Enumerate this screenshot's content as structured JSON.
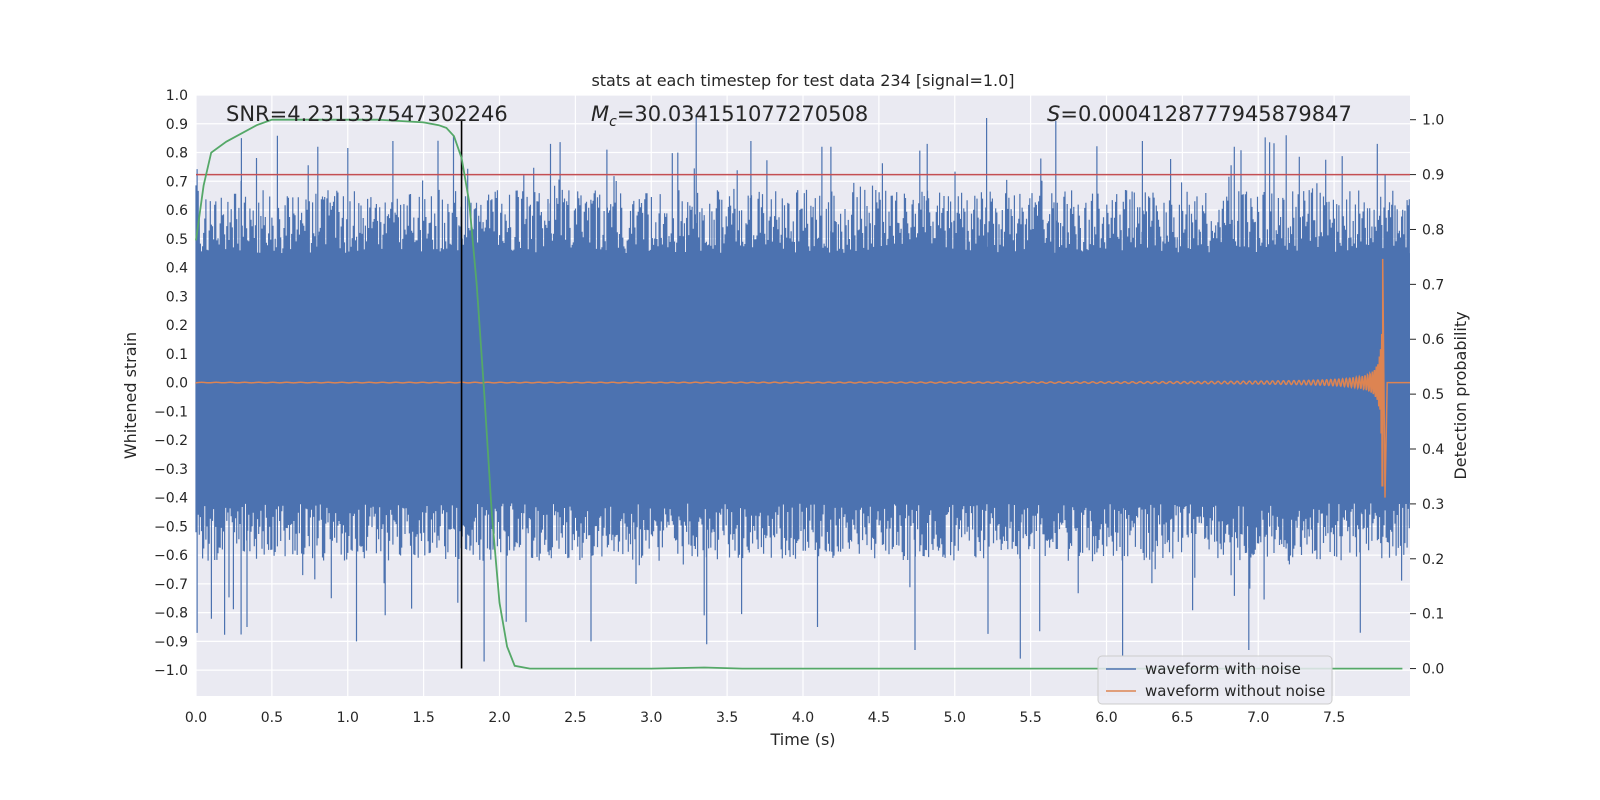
{
  "chart_data": {
    "type": "line",
    "title": "stats at each timestep for test data 234 [signal=1.0]",
    "xlabel": "Time (s)",
    "ylabel": "Whitened strain",
    "y2label": "Detection probability",
    "xlim": [
      0.0,
      8.0
    ],
    "ylim": [
      -1.09,
      1.0
    ],
    "y2lim": [
      -0.05,
      1.045
    ],
    "x_ticks": [
      "0.0",
      "0.5",
      "1.0",
      "1.5",
      "2.0",
      "2.5",
      "3.0",
      "3.5",
      "4.0",
      "4.5",
      "5.0",
      "5.5",
      "6.0",
      "6.5",
      "7.0",
      "7.5"
    ],
    "y_ticks": [
      "1.0",
      "0.9",
      "0.8",
      "0.7",
      "0.6",
      "0.5",
      "0.4",
      "0.3",
      "0.2",
      "0.1",
      "0.0",
      "−0.1",
      "−0.2",
      "−0.3",
      "−0.4",
      "−0.5",
      "−0.6",
      "−0.7",
      "−0.8",
      "−0.9",
      "−1.0"
    ],
    "y2_ticks": [
      "1.0",
      "0.9",
      "0.8",
      "0.7",
      "0.6",
      "0.5",
      "0.4",
      "0.3",
      "0.2",
      "0.1",
      "0.0"
    ],
    "grid": true,
    "background": "#eaeaf2",
    "annotations": {
      "snr_label": "SNR=4.231337547302246",
      "mc_prefix": "M",
      "mc_sub": "c",
      "mc_value": "=30.034151077270508",
      "s_prefix": "S",
      "s_value": "=0.0004128777945879847"
    },
    "threshold": {
      "value": 0.9,
      "axis": "y2",
      "color": "#c44e52"
    },
    "marker_line": {
      "x": 1.75,
      "color": "#000000"
    },
    "series": [
      {
        "name": "waveform with noise",
        "axis": "y",
        "color": "#4c72b0",
        "dense_band": {
          "low": -0.42,
          "high": 0.45
        },
        "spike_highs_sample": [
          0.85,
          0.82,
          0.84,
          0.86,
          0.83,
          0.81,
          0.93,
          0.84,
          0.82,
          0.83,
          0.92,
          0.91,
          0.84,
          0.82,
          0.86,
          0.83
        ],
        "spike_lows_sample": [
          -0.85,
          -0.9,
          -0.97,
          -0.9,
          -0.91,
          -0.85,
          -0.93,
          -0.96,
          -0.95,
          -0.93,
          -0.87
        ]
      },
      {
        "name": "waveform without noise",
        "axis": "y",
        "color": "#dd8452",
        "chirp_end_time": 7.82,
        "peak_amplitude": 0.43,
        "min_amplitude": -0.4
      },
      {
        "name": "detection probability",
        "axis": "y2",
        "color": "#55a868",
        "x": [
          0.0,
          0.05,
          0.1,
          0.2,
          0.3,
          0.4,
          0.5,
          0.8,
          1.2,
          1.5,
          1.6,
          1.65,
          1.7,
          1.75,
          1.8,
          1.85,
          1.9,
          1.95,
          2.0,
          2.05,
          2.1,
          2.2,
          2.5,
          3.0,
          3.35,
          3.6,
          4.0,
          5.0,
          6.0,
          7.0,
          7.5,
          7.95
        ],
        "y": [
          0.78,
          0.88,
          0.94,
          0.96,
          0.975,
          0.99,
          1.0,
          1.0,
          1.0,
          0.995,
          0.99,
          0.985,
          0.97,
          0.93,
          0.85,
          0.7,
          0.5,
          0.28,
          0.12,
          0.04,
          0.005,
          0.0,
          0.0,
          0.0,
          0.002,
          0.0,
          0.0,
          0.0,
          0.0,
          0.0,
          0.0,
          0.0
        ]
      }
    ],
    "legend": {
      "placement": "lower-right",
      "entries": [
        "waveform with noise",
        "waveform without noise"
      ]
    }
  }
}
